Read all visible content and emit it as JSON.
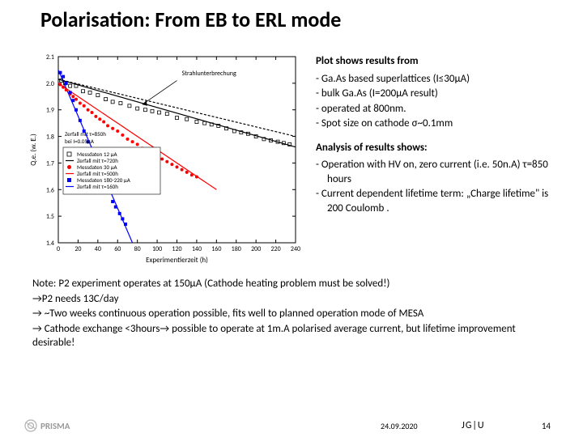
{
  "title": "Polarisation: From EB to ERL mode",
  "chart": {
    "xlabel": "Experimentierzeit (h)",
    "ylabel": "Q.e. (w. E.)",
    "xlim": [
      0,
      240
    ],
    "xticks": [
      0,
      20,
      40,
      60,
      80,
      100,
      120,
      140,
      160,
      180,
      200,
      220,
      240
    ],
    "ylim": [
      1.4,
      2.1
    ],
    "yticks": [
      1.4,
      1.5,
      1.6,
      1.7,
      1.8,
      1.9,
      2.0,
      2.1
    ],
    "bg": "#ffffff",
    "border": "#000000",
    "annotation1": "Strahlunterbrechung",
    "annotation2_line1": "Zerfall mit τ=850h",
    "annotation2_line2": "bei I=0.05μA",
    "legend": [
      {
        "marker": "open-square",
        "color": "#000000",
        "label": "Messdaten 12 μA"
      },
      {
        "marker": "line",
        "color": "#000000",
        "label": "Zerfall mit τ=720h"
      },
      {
        "marker": "filled-circle",
        "color": "#ff0000",
        "label": "Messdaten 30 μA"
      },
      {
        "marker": "line",
        "color": "#ff0000",
        "label": "Zerfall mit τ=500h"
      },
      {
        "marker": "filled-square",
        "color": "#0000ff",
        "label": "Messdaten 180-220 μA"
      },
      {
        "marker": "line",
        "color": "#0000ff",
        "label": "Zerfall mit τ=160h"
      }
    ],
    "series_black_open": {
      "color": "#000000",
      "pts": [
        [
          3,
          2.01
        ],
        [
          7,
          2.0
        ],
        [
          12,
          1.99
        ],
        [
          18,
          1.99
        ],
        [
          25,
          1.97
        ],
        [
          32,
          1.965
        ],
        [
          40,
          1.955
        ],
        [
          48,
          1.94
        ],
        [
          55,
          1.93
        ],
        [
          63,
          1.925
        ],
        [
          72,
          1.915
        ],
        [
          80,
          1.905
        ],
        [
          88,
          1.9
        ],
        [
          95,
          1.895
        ],
        [
          102,
          1.89
        ],
        [
          110,
          1.885
        ],
        [
          120,
          1.87
        ],
        [
          130,
          1.865
        ],
        [
          140,
          1.855
        ],
        [
          148,
          1.85
        ],
        [
          155,
          1.845
        ],
        [
          162,
          1.84
        ],
        [
          170,
          1.83
        ],
        [
          178,
          1.82
        ],
        [
          185,
          1.815
        ],
        [
          192,
          1.81
        ],
        [
          200,
          1.8
        ],
        [
          208,
          1.79
        ],
        [
          215,
          1.785
        ],
        [
          222,
          1.78
        ],
        [
          228,
          1.775
        ],
        [
          234,
          1.77
        ]
      ]
    },
    "series_red": {
      "color": "#ff0000",
      "pts": [
        [
          2,
          1.995
        ],
        [
          5,
          1.985
        ],
        [
          8,
          1.975
        ],
        [
          12,
          1.96
        ],
        [
          15,
          1.95
        ],
        [
          18,
          1.94
        ],
        [
          22,
          1.925
        ],
        [
          26,
          1.915
        ],
        [
          30,
          1.9
        ],
        [
          34,
          1.89
        ],
        [
          38,
          1.875
        ],
        [
          42,
          1.865
        ],
        [
          46,
          1.855
        ],
        [
          50,
          1.84
        ],
        [
          55,
          1.83
        ],
        [
          60,
          1.82
        ],
        [
          65,
          1.805
        ],
        [
          70,
          1.79
        ],
        [
          75,
          1.78
        ],
        [
          80,
          1.77
        ],
        [
          85,
          1.755
        ],
        [
          90,
          1.745
        ],
        [
          95,
          1.735
        ],
        [
          100,
          1.725
        ],
        [
          105,
          1.715
        ],
        [
          110,
          1.705
        ],
        [
          115,
          1.695
        ],
        [
          120,
          1.685
        ],
        [
          125,
          1.675
        ],
        [
          130,
          1.665
        ],
        [
          135,
          1.655
        ],
        [
          140,
          1.648
        ]
      ]
    },
    "series_blue": {
      "color": "#0000ff",
      "pts": [
        [
          2,
          2.04
        ],
        [
          5,
          2.025
        ],
        [
          8,
          2.0
        ],
        [
          12,
          1.965
        ],
        [
          15,
          1.935
        ],
        [
          18,
          1.9
        ],
        [
          22,
          1.86
        ],
        [
          26,
          1.82
        ],
        [
          30,
          1.78
        ],
        [
          34,
          1.74
        ],
        [
          38,
          1.7
        ],
        [
          42,
          1.665
        ],
        [
          46,
          1.63
        ],
        [
          50,
          1.6
        ],
        [
          55,
          1.555
        ],
        [
          58,
          1.535
        ],
        [
          62,
          1.51
        ],
        [
          65,
          1.49
        ],
        [
          68,
          1.47
        ]
      ]
    },
    "line_black": {
      "color": "#000000",
      "x1": 0,
      "y1": 2.015,
      "x2": 240,
      "y2": 1.76
    },
    "line_black_dash": {
      "color": "#000000",
      "dash": "3,2",
      "x1": 0,
      "y1": 2.015,
      "x2": 240,
      "y2": 1.8
    },
    "line_red": {
      "color": "#ff0000",
      "x1": 0,
      "y1": 2.0,
      "x2": 160,
      "y2": 1.6
    },
    "line_blue": {
      "color": "#0000ff",
      "x1": 0,
      "y1": 2.05,
      "x2": 75,
      "y2": 1.4
    }
  },
  "bullets1_head": "Plot shows results from",
  "bullets1": [
    "Ga.As based superlattices (I≤30μA)",
    " bulk Ga.As (I=200μA result)",
    " operated at 800nm.",
    " Spot size on cathode σ~0.1mm"
  ],
  "bullets2_head": "Analysis of results shows:",
  "bullets2": [
    " Operation with HV on, zero current (i.e. 50n.A) τ=850 hours",
    " Current dependent lifetime term: „Charge lifetime\" is 200 Coulomb ."
  ],
  "note": [
    "Note: P2 experiment operates at 150μA (Cathode heating problem must be solved!)",
    "→P2 needs 13C/day",
    "→ ~Two weeks continuous operation possible, fits well to planned operation mode of MESA",
    "→ Cathode exchange <3hours→ possible to operate at 1m.A polarised average current, but lifetime improvement desirable!"
  ],
  "footer": {
    "prisma": "PRISMA",
    "date": "24.09.2020",
    "jgu": "JG|U",
    "page": "14"
  },
  "colors": {
    "prisma_logo": "#b0b0b0"
  }
}
